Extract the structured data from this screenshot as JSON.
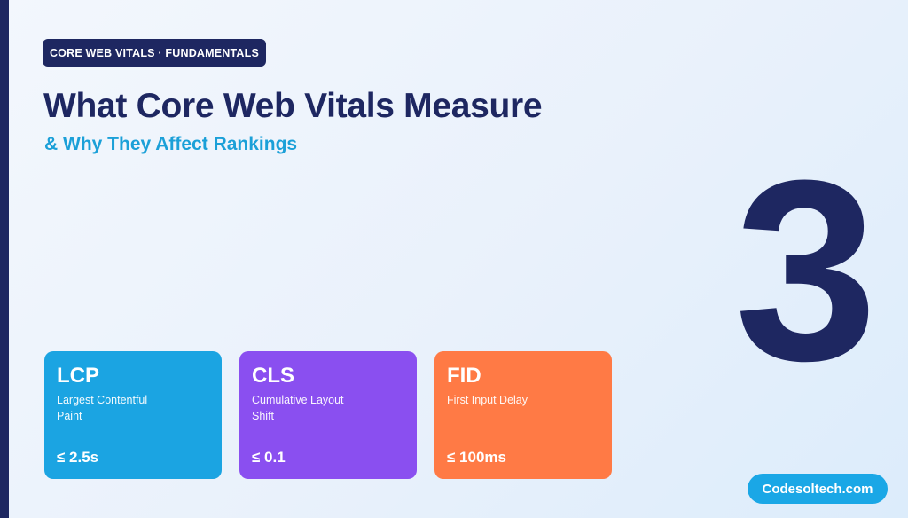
{
  "badge": {
    "text": "CORE WEB VITALS · FUNDAMENTALS"
  },
  "header": {
    "title": "What Core Web Vitals Measure",
    "subtitle": "& Why They Affect Rankings"
  },
  "big_number": "3",
  "cards": [
    {
      "abbr": "LCP",
      "desc": "Largest Contentful Paint",
      "value": "≤ 2.5s",
      "color": "#1ba4e2"
    },
    {
      "abbr": "CLS",
      "desc": "Cumulative Layout Shift",
      "value": "≤ 0.1",
      "color": "#8a4ff0"
    },
    {
      "abbr": "FID",
      "desc": "First Input Delay",
      "value": "≤ 100ms",
      "color": "#ff7a45"
    }
  ],
  "footer": {
    "brand": "Codesoltech.com"
  },
  "colors": {
    "navy": "#1e2761",
    "accent": "#1ba0d8"
  }
}
